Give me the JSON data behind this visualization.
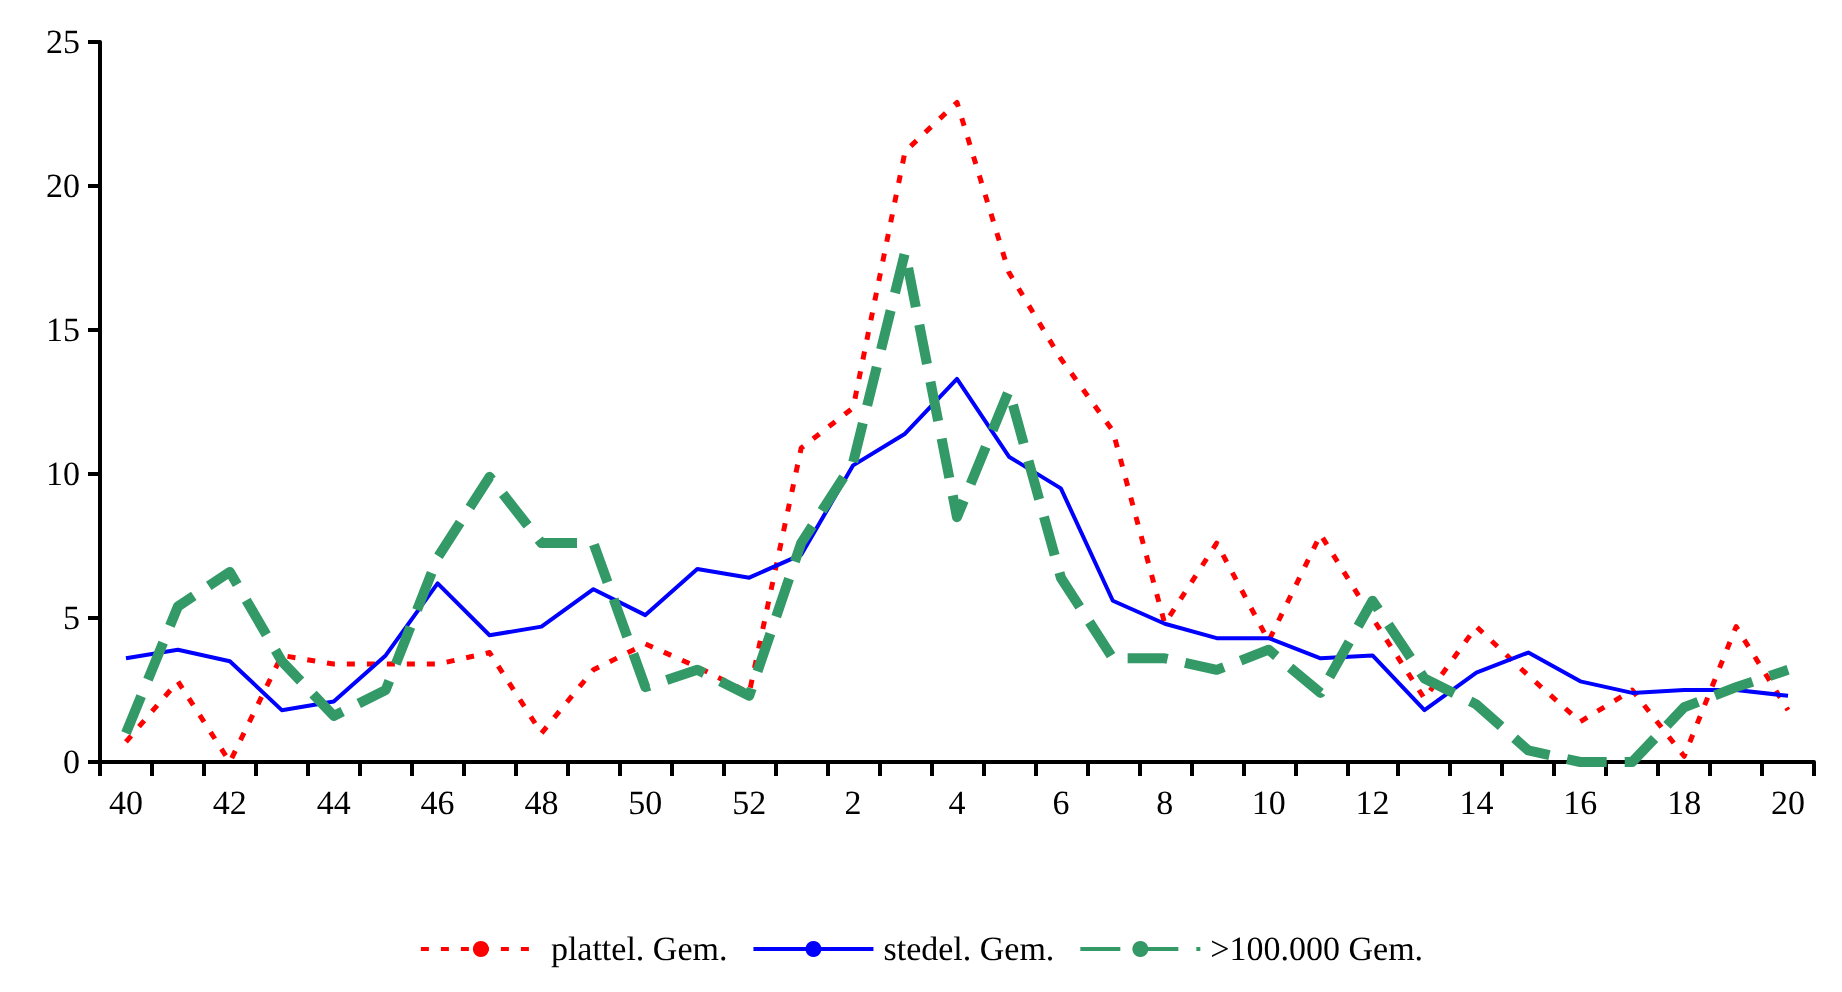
{
  "chart_data": {
    "type": "line",
    "categories": [
      "40",
      null,
      "42",
      null,
      "44",
      null,
      "46",
      null,
      "48",
      null,
      "50",
      null,
      "52",
      null,
      "2",
      null,
      "4",
      null,
      "6",
      null,
      "8",
      null,
      "10",
      null,
      "12",
      null,
      "14",
      null,
      "16",
      null,
      "18",
      null,
      "20"
    ],
    "series": [
      {
        "name": "plattel. Gem.",
        "color": "#ff0000",
        "line_style": "dotted",
        "values": [
          0.7,
          2.8,
          0,
          3.7,
          3.4,
          3.4,
          3.4,
          3.8,
          1.0,
          3.2,
          4.1,
          3.3,
          2.4,
          10.9,
          12.3,
          21.2,
          22.9,
          17.0,
          14.0,
          11.5,
          4.8,
          7.6,
          4.2,
          7.9,
          5.0,
          2.2,
          4.7,
          3.0,
          1.4,
          2.5,
          0.2,
          4.7,
          1.8
        ]
      },
      {
        "name": "stedel. Gem.",
        "color": "#0000ff",
        "line_style": "solid",
        "values": [
          3.6,
          3.9,
          3.5,
          1.8,
          2.1,
          3.7,
          6.2,
          4.4,
          4.7,
          6.0,
          5.1,
          6.7,
          6.4,
          7.2,
          10.3,
          11.4,
          13.3,
          10.6,
          9.5,
          5.6,
          4.8,
          4.3,
          4.3,
          3.6,
          3.7,
          1.8,
          3.1,
          3.8,
          2.8,
          2.4,
          2.5,
          2.5,
          2.3
        ]
      },
      {
        "name": ">100.000 Gem.",
        "color": "#339966",
        "line_style": "dashed",
        "values": [
          1.0,
          5.4,
          6.6,
          3.5,
          1.6,
          2.5,
          7.1,
          9.9,
          7.6,
          7.6,
          2.6,
          3.2,
          2.3,
          7.6,
          10.4,
          17.7,
          8.5,
          12.9,
          6.4,
          3.6,
          3.6,
          3.2,
          3.9,
          2.4,
          5.6,
          2.9,
          2.0,
          0.4,
          0,
          0,
          1.9,
          2.6,
          3.2
        ]
      }
    ],
    "ylim": [
      0,
      25
    ],
    "yticks": [
      0,
      5,
      10,
      15,
      20,
      25
    ],
    "grid": false,
    "legend": "bottom",
    "marker": "none"
  }
}
